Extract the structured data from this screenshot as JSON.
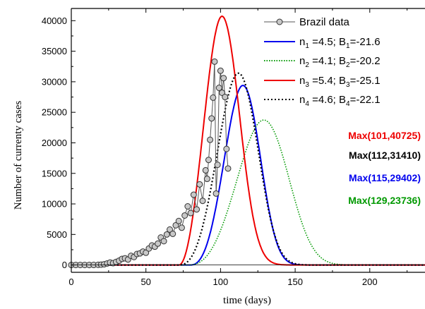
{
  "chart_data": {
    "type": "line",
    "title": "",
    "xlabel": "time (days)",
    "ylabel": "Number of currenty cases",
    "xlim": [
      0,
      237
    ],
    "ylim": [
      -1200,
      42000
    ],
    "x_ticks": [
      0,
      50,
      100,
      150,
      200
    ],
    "y_ticks": [
      0,
      5000,
      10000,
      15000,
      20000,
      25000,
      30000,
      35000,
      40000
    ],
    "grid": false,
    "legend_placement": "top-right",
    "series": [
      {
        "name": "Brazil data",
        "style": "markers",
        "color": "#000000",
        "marker_fill": "#c8c8c8",
        "x": [
          0,
          3,
          6,
          9,
          12,
          15,
          18,
          20,
          22,
          24,
          26,
          28,
          30,
          32,
          34,
          36,
          38,
          40,
          42,
          44,
          46,
          48,
          50,
          52,
          54,
          56,
          58,
          60,
          62,
          64,
          66,
          68,
          70,
          72,
          74,
          76,
          78,
          80,
          82,
          84,
          86,
          88,
          90,
          91,
          92,
          93,
          94,
          95,
          96,
          97,
          98,
          99,
          100,
          101,
          102,
          103,
          104,
          105
        ],
        "y": [
          0,
          0,
          0,
          0,
          0,
          10,
          30,
          60,
          120,
          250,
          400,
          300,
          500,
          700,
          1000,
          1100,
          900,
          1500,
          1300,
          1800,
          1900,
          2200,
          2000,
          2700,
          3200,
          3000,
          3500,
          4500,
          3900,
          5000,
          5800,
          5100,
          6500,
          7200,
          6100,
          8100,
          9600,
          8500,
          11500,
          9100,
          13200,
          10500,
          15500,
          14100,
          17200,
          20500,
          24000,
          27400,
          33300,
          11700,
          16400,
          29000,
          31800,
          28200,
          30600,
          27500,
          19000,
          15800
        ]
      },
      {
        "name": "n1 =4.5; B1=-21.6",
        "style": "solid",
        "color": "#0000ee",
        "peak_x": 115,
        "peak_y": 29402,
        "n": 4.5,
        "B": -21.6
      },
      {
        "name": "n2 =4.1; B2=-20.2",
        "style": "dotted",
        "color": "#009900",
        "peak_x": 129,
        "peak_y": 23736,
        "n": 4.1,
        "B": -20.2
      },
      {
        "name": "n3 =5.4; B3=-25.1",
        "style": "solid",
        "color": "#ee0000",
        "peak_x": 101,
        "peak_y": 40725,
        "n": 5.4,
        "B": -25.1
      },
      {
        "name": "n4 =4.6; B4=-22.1",
        "style": "dotted",
        "color": "#000000",
        "peak_x": 112,
        "peak_y": 31410,
        "n": 4.6,
        "B": -22.1
      }
    ],
    "legend": [
      {
        "label": "Brazil data",
        "sub": [],
        "style": "markers",
        "color": "#000000"
      },
      {
        "label": "n1 =4.5; B1=-21.6",
        "parts": [
          "n",
          "1",
          " =4.5; B",
          "1",
          "=-21.6"
        ],
        "style": "solid",
        "color": "#0000ee"
      },
      {
        "label": "n2 =4.1; B2=-20.2",
        "parts": [
          "n",
          "2",
          " =4.1; B",
          "2",
          "=-20.2"
        ],
        "style": "dotted",
        "color": "#009900"
      },
      {
        "label": "n3 =5.4; B3=-25.1",
        "parts": [
          "n",
          "3",
          " =5.4; B",
          "3",
          "=-25.1"
        ],
        "style": "solid",
        "color": "#ee0000"
      },
      {
        "label": "n4 =4.6; B4=-22.1",
        "parts": [
          "n",
          "4",
          " =4.6; B",
          "4",
          "=-22.1"
        ],
        "style": "dotted",
        "color": "#000000"
      }
    ],
    "annotations": [
      {
        "text": "Max(101,40725)",
        "color": "#ee0000"
      },
      {
        "text": "Max(112,31410)",
        "color": "#000000"
      },
      {
        "text": "Max(115,29402)",
        "color": "#0000ee"
      },
      {
        "text": "Max(129,23736)",
        "color": "#009900"
      }
    ]
  }
}
